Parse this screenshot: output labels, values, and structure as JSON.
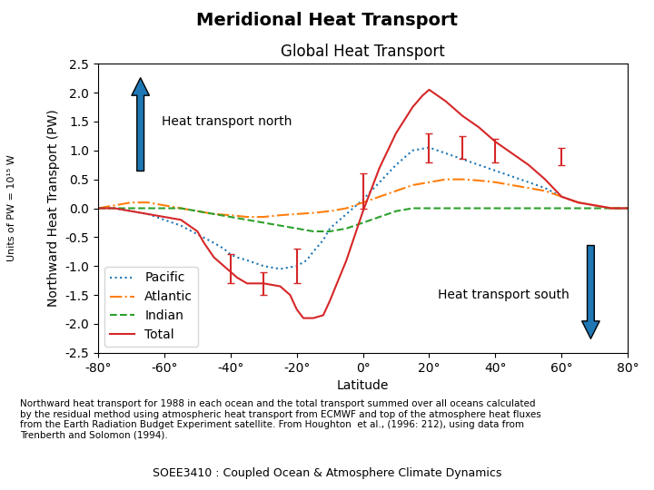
{
  "chart_data": {
    "type": "line",
    "title": "Meridional Heat Transport",
    "subtitle": "Global Heat Transport",
    "xlabel": "Latitude",
    "ylabel": "Northward Heat Transport (PW)",
    "units_label": "Units of PW = 10¹⁵ W",
    "footer_text": "Northward heat transport for 1988 in each ocean and the total transport summed over all oceans calculated\nby the residual method using atmospheric heat transport from ECMWF and top of the atmosphere heat fluxes\nfrom the Earth Radiation Budget Experiment satellite. From Houghton  et al., (1996: 212), using data from\nTrenberth and Solomon (1994).",
    "bottom_text": "SOEE3410 : Coupled Ocean & Atmosphere Climate Dynamics",
    "annotations": [
      "Heat transport north",
      "Heat transport south"
    ],
    "xlim": [
      -80,
      80
    ],
    "ylim": [
      -2.5,
      2.5
    ],
    "xticks": [
      {
        "value": -80,
        "label": "-80°"
      },
      {
        "value": -60,
        "label": "-60°"
      },
      {
        "value": -40,
        "label": "-40°"
      },
      {
        "value": -20,
        "label": "-20°"
      },
      {
        "value": 0,
        "label": "0°"
      },
      {
        "value": 20,
        "label": "20°"
      },
      {
        "value": 40,
        "label": "40°"
      },
      {
        "value": 60,
        "label": "60°"
      },
      {
        "value": 80,
        "label": "80°"
      }
    ],
    "yticks": [
      -2.5,
      {
        "value": -2.0,
        "label": "-2.0"
      },
      -1.5,
      {
        "value": -1.0,
        "label": "-1.0"
      },
      -0.5,
      {
        "value": 0.0,
        "label": "0.0"
      },
      0.5,
      {
        "value": 1.0,
        "label": "1.0"
      },
      1.5,
      {
        "value": 2.0,
        "label": "2.0"
      },
      2.5
    ],
    "grid": false,
    "legend": "lower left",
    "series": [
      {
        "name": "Pacific",
        "line_style": "dotted",
        "x": [
          -80,
          -75,
          -70,
          -65,
          -60,
          -55,
          -50,
          -45,
          -42,
          -40,
          -38,
          -35,
          -30,
          -25,
          -20,
          -17,
          -15,
          -12,
          -10,
          -5,
          0,
          5,
          10,
          15,
          20,
          25,
          30,
          35,
          40,
          45,
          50,
          55,
          60,
          65,
          70,
          75,
          80
        ],
        "values": [
          0.0,
          0.0,
          -0.05,
          -0.1,
          -0.2,
          -0.3,
          -0.45,
          -0.6,
          -0.7,
          -0.8,
          -0.85,
          -0.9,
          -1.0,
          -1.05,
          -1.0,
          -0.9,
          -0.75,
          -0.55,
          -0.35,
          -0.1,
          0.15,
          0.45,
          0.75,
          1.0,
          1.05,
          0.95,
          0.85,
          0.75,
          0.65,
          0.55,
          0.45,
          0.35,
          0.2,
          0.1,
          0.05,
          0.0,
          0.0
        ]
      },
      {
        "name": "Atlantic",
        "line_style": "dashdot",
        "x": [
          -80,
          -75,
          -70,
          -65,
          -60,
          -55,
          -50,
          -45,
          -40,
          -35,
          -30,
          -25,
          -20,
          -15,
          -10,
          -5,
          0,
          5,
          10,
          15,
          20,
          25,
          30,
          35,
          40,
          45,
          50,
          55,
          60,
          65,
          70,
          75,
          80
        ],
        "values": [
          0.0,
          0.05,
          0.1,
          0.1,
          0.05,
          0.0,
          -0.05,
          -0.1,
          -0.12,
          -0.15,
          -0.15,
          -0.12,
          -0.1,
          -0.08,
          -0.05,
          0.0,
          0.1,
          0.2,
          0.3,
          0.4,
          0.45,
          0.5,
          0.5,
          0.48,
          0.45,
          0.4,
          0.35,
          0.3,
          0.2,
          0.1,
          0.05,
          0.0,
          0.0
        ]
      },
      {
        "name": "Indian",
        "line_style": "dashed",
        "x": [
          -80,
          -75,
          -70,
          -65,
          -60,
          -55,
          -50,
          -45,
          -40,
          -35,
          -30,
          -25,
          -20,
          -15,
          -10,
          -5,
          0,
          5,
          10,
          15,
          20,
          25,
          30,
          35,
          40,
          45,
          50,
          55,
          60,
          65,
          70,
          75,
          80
        ],
        "values": [
          0.0,
          0.0,
          0.0,
          0.0,
          0.0,
          0.0,
          -0.05,
          -0.1,
          -0.15,
          -0.2,
          -0.25,
          -0.3,
          -0.35,
          -0.4,
          -0.4,
          -0.35,
          -0.25,
          -0.15,
          -0.05,
          0.0,
          0.0,
          0.0,
          0.0,
          0.0,
          0.0,
          0.0,
          0.0,
          0.0,
          0.0,
          0.0,
          0.0,
          0.0,
          0.0
        ]
      },
      {
        "name": "Total",
        "line_style": "solid",
        "x": [
          -80,
          -75,
          -70,
          -65,
          -60,
          -55,
          -50,
          -48,
          -45,
          -42,
          -40,
          -38,
          -35,
          -30,
          -25,
          -22,
          -20,
          -18,
          -15,
          -12,
          -10,
          -5,
          0,
          5,
          10,
          15,
          18,
          20,
          25,
          30,
          35,
          40,
          45,
          50,
          55,
          60,
          65,
          70,
          75,
          80
        ],
        "values": [
          0.0,
          0.0,
          -0.05,
          -0.1,
          -0.15,
          -0.2,
          -0.4,
          -0.6,
          -0.85,
          -1.0,
          -1.1,
          -1.2,
          -1.3,
          -1.3,
          -1.35,
          -1.5,
          -1.75,
          -1.9,
          -1.9,
          -1.85,
          -1.6,
          -0.9,
          -0.05,
          0.7,
          1.3,
          1.75,
          1.95,
          2.05,
          1.85,
          1.6,
          1.4,
          1.15,
          0.95,
          0.75,
          0.5,
          0.2,
          0.1,
          0.05,
          0.0,
          0.0
        ],
        "error_bars": {
          "x": [
            -40,
            -30,
            -20,
            0,
            20,
            30,
            40,
            60
          ],
          "values": [
            -1.05,
            -1.3,
            -1.0,
            0.3,
            1.05,
            1.05,
            1.0,
            0.9
          ],
          "errors": [
            0.25,
            0.2,
            0.3,
            0.3,
            0.25,
            0.2,
            0.2,
            0.15
          ]
        }
      }
    ]
  }
}
